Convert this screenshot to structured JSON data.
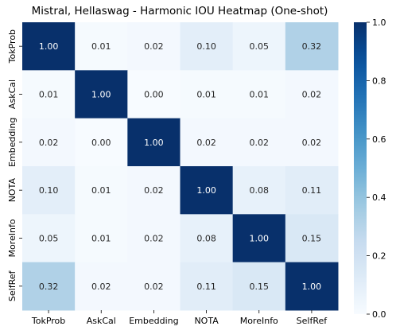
{
  "chart_data": {
    "type": "heatmap",
    "title": "Mistral, Hellaswag - Harmonic IOU Heatmap (One-shot)",
    "xlabels": [
      "TokProb",
      "AskCal",
      "Embedding",
      "NOTA",
      "MoreInfo",
      "SelfRef"
    ],
    "ylabels": [
      "TokProb",
      "AskCal",
      "Embedding",
      "NOTA",
      "MoreInfo",
      "SelfRef"
    ],
    "values": [
      [
        1.0,
        0.01,
        0.02,
        0.1,
        0.05,
        0.32
      ],
      [
        0.01,
        1.0,
        0.0,
        0.01,
        0.01,
        0.02
      ],
      [
        0.02,
        0.0,
        1.0,
        0.02,
        0.02,
        0.02
      ],
      [
        0.1,
        0.01,
        0.02,
        1.0,
        0.08,
        0.11
      ],
      [
        0.05,
        0.01,
        0.02,
        0.08,
        1.0,
        0.15
      ],
      [
        0.32,
        0.02,
        0.02,
        0.11,
        0.15,
        1.0
      ]
    ],
    "colormap": "Blues",
    "vmin": 0.0,
    "vmax": 1.0,
    "colorbar_ticks": [
      "0.0",
      "0.2",
      "0.4",
      "0.6",
      "0.8",
      "1.0"
    ]
  }
}
